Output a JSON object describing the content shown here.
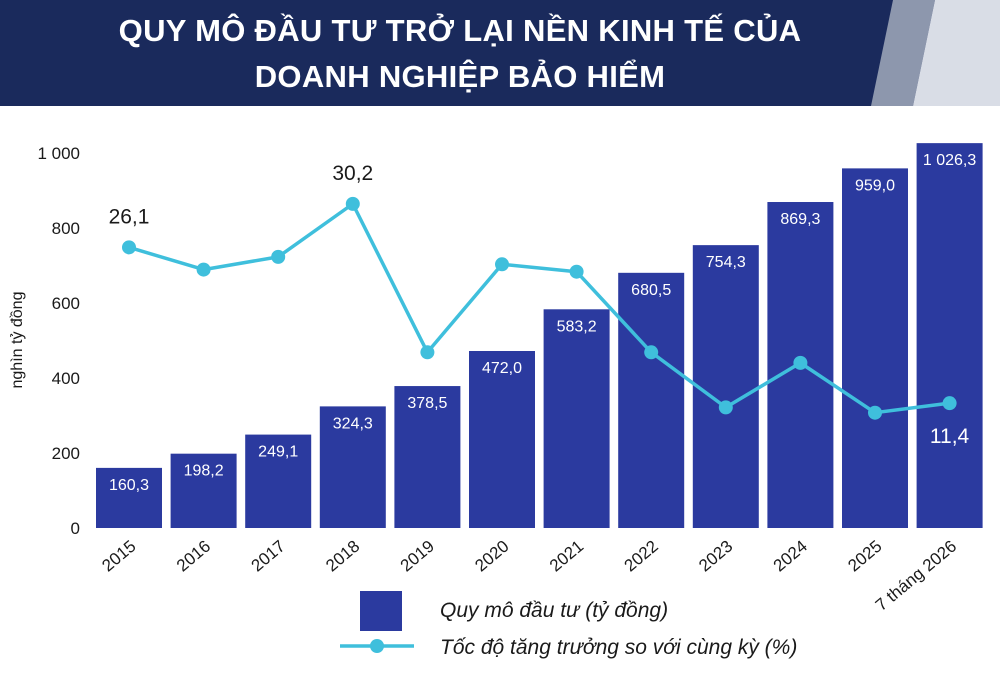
{
  "colors": {
    "header_bg": "#1a2a5c",
    "header_stripe": "#d9dde6",
    "bar": "#2b3a9f",
    "line": "#3fbfdc",
    "text": "#1a1a1a"
  },
  "title_lines": [
    "QUY MÔ ĐẦU TƯ TRỞ LẠI NỀN KINH TẾ CỦA",
    "DOANH NGHIỆP BẢO HIỂM"
  ],
  "chart_data": {
    "type": "bar",
    "categories": [
      "2015",
      "2016",
      "2017",
      "2018",
      "2019",
      "2020",
      "2021",
      "2022",
      "2023",
      "2024",
      "2025",
      "7 tháng 2026"
    ],
    "ylabel": "nghìn tỷ đồng",
    "ylim": [
      0,
      1000
    ],
    "yticks": [
      0,
      200,
      400,
      600,
      800,
      1000
    ],
    "ytick_labels": [
      "0",
      "200",
      "400",
      "600",
      "800",
      "1 000"
    ],
    "legend_position": "bottom",
    "series": [
      {
        "name": "Quy mô đầu tư (tỷ đồng)",
        "type": "bar",
        "values": [
          160.3,
          198.2,
          249.1,
          324.3,
          378.5,
          472.0,
          583.2,
          680.5,
          754.3,
          869.3,
          959.0,
          1026.3
        ],
        "labels": [
          "160,3",
          "198,2",
          "249,1",
          "324,3",
          "378,5",
          "472,0",
          "583,2",
          "680,5",
          "754,3",
          "869,3",
          "959,0",
          "1 026,3"
        ]
      },
      {
        "name": "Tốc độ tăng trưởng so với cùng kỳ (%)",
        "type": "line",
        "values": [
          26.1,
          24.0,
          25.2,
          30.2,
          16.2,
          24.5,
          23.8,
          16.2,
          11.0,
          15.2,
          10.5,
          11.4
        ],
        "labeled_points": [
          {
            "index": 0,
            "label": "26,1"
          },
          {
            "index": 3,
            "label": "30,2"
          },
          {
            "index": 11,
            "label": "11,4"
          }
        ]
      }
    ]
  }
}
